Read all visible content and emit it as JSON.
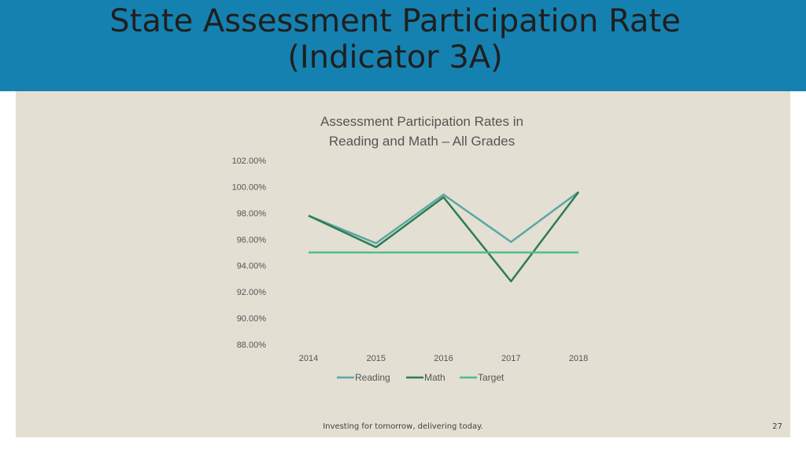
{
  "slide": {
    "title_line1": "State Assessment Participation Rate",
    "title_line2": "(Indicator 3A)",
    "footer": "Investing for tomorrow, delivering today.",
    "page_number": "27"
  },
  "colors": {
    "header": "#1581b0",
    "panel": "#e3dfd3",
    "reading": "#5ba6a8",
    "math": "#2e7d4f",
    "target": "#4dbd8c"
  },
  "chart_data": {
    "type": "line",
    "title_line1": "Assessment Participation Rates in",
    "title_line2": "Reading and Math – All Grades",
    "categories": [
      "2014",
      "2015",
      "2016",
      "2017",
      "2018"
    ],
    "series": [
      {
        "name": "Reading",
        "values": [
          97.8,
          95.7,
          99.4,
          95.8,
          99.6
        ]
      },
      {
        "name": "Math",
        "values": [
          97.8,
          95.4,
          99.2,
          92.8,
          99.6
        ]
      },
      {
        "name": "Target",
        "values": [
          95.0,
          95.0,
          95.0,
          95.0,
          95.0
        ]
      }
    ],
    "ylim": [
      88,
      102
    ],
    "yticks": [
      "88.00%",
      "90.00%",
      "92.00%",
      "94.00%",
      "96.00%",
      "98.00%",
      "100.00%",
      "102.00%"
    ],
    "grid": false,
    "legend_position": "bottom"
  }
}
